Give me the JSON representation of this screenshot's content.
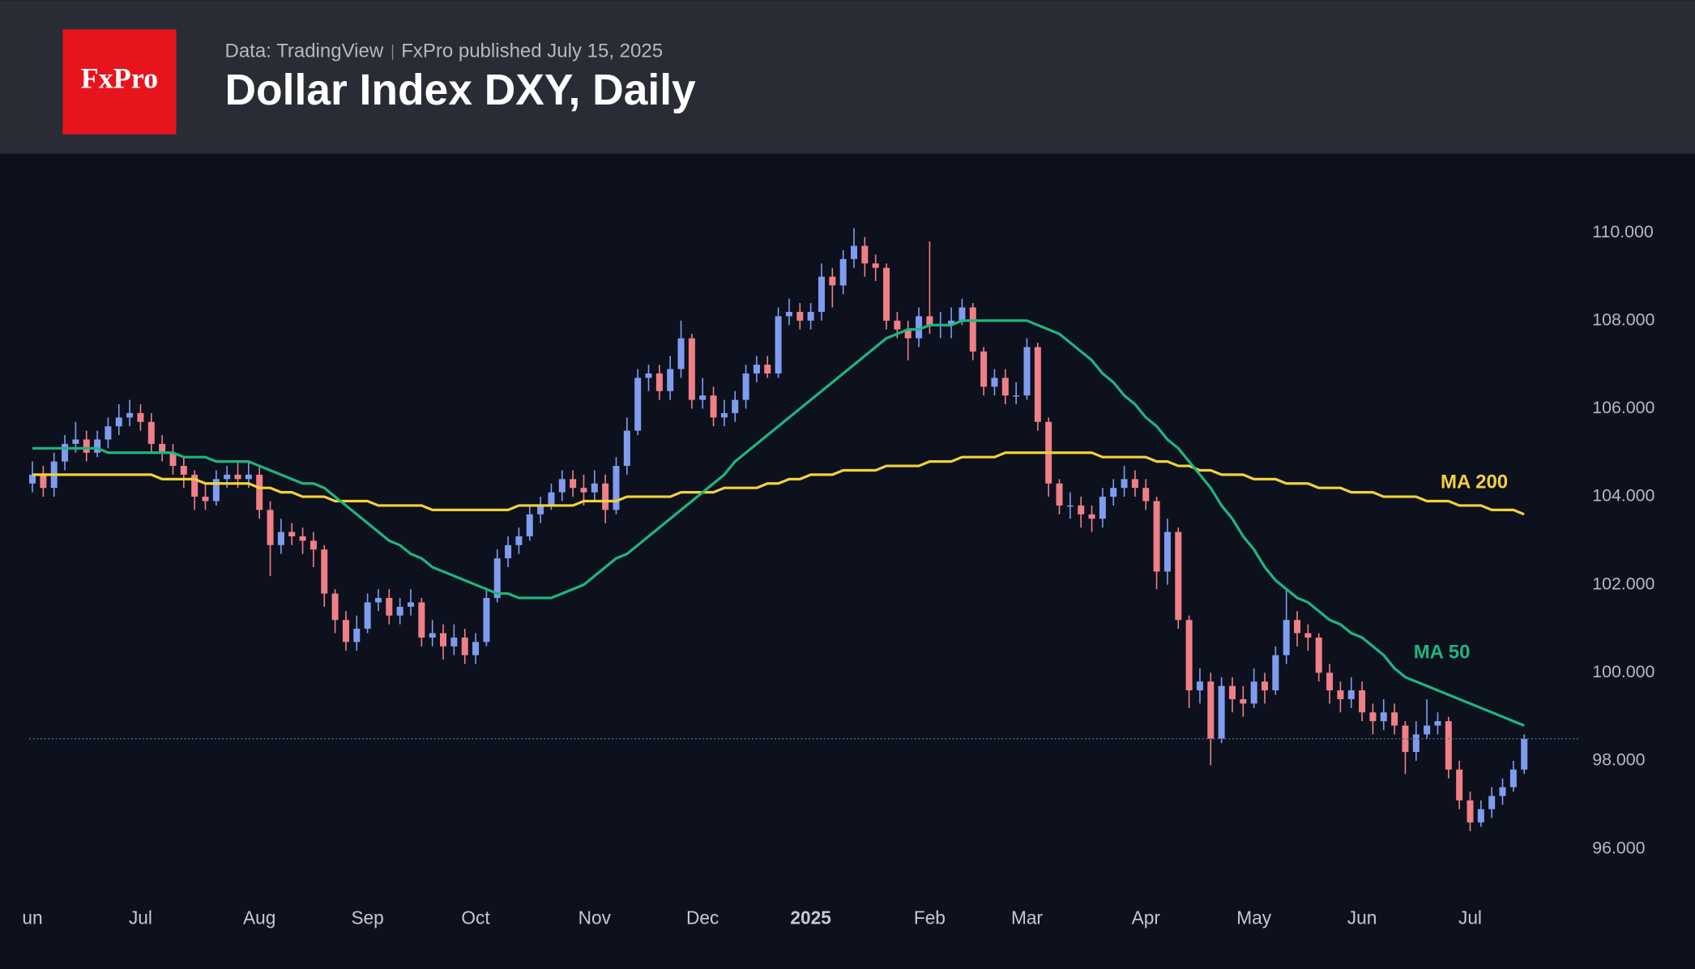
{
  "header": {
    "logo": "FxPro",
    "source": "Data: TradingView",
    "published": "FxPro published July 15, 2025"
  },
  "chart_data": {
    "type": "candlestick",
    "title": "Dollar Index DXY, Daily",
    "up_color": "#7f9cf0",
    "down_color": "#f07f86",
    "ylim": [
      95.2,
      111.4
    ],
    "yticks": [
      {
        "value": 96,
        "label": "96.000"
      },
      {
        "value": 98,
        "label": "98.000"
      },
      {
        "value": 100,
        "label": "100.000"
      },
      {
        "value": 102,
        "label": "102.000"
      },
      {
        "value": 104,
        "label": "104.000"
      },
      {
        "value": 106,
        "label": "106.000"
      },
      {
        "value": 108,
        "label": "108.000"
      },
      {
        "value": 110,
        "label": "110.000"
      }
    ],
    "categories": [
      "un",
      null,
      null,
      null,
      null,
      null,
      null,
      null,
      null,
      null,
      "Jul",
      null,
      null,
      null,
      null,
      null,
      null,
      null,
      null,
      null,
      null,
      "Aug",
      null,
      null,
      null,
      null,
      null,
      null,
      null,
      null,
      null,
      "Sep",
      null,
      null,
      null,
      null,
      null,
      null,
      null,
      null,
      null,
      "Oct",
      null,
      null,
      null,
      null,
      null,
      null,
      null,
      null,
      null,
      null,
      "Nov",
      null,
      null,
      null,
      null,
      null,
      null,
      null,
      null,
      null,
      "Dec",
      null,
      null,
      null,
      null,
      null,
      null,
      null,
      null,
      null,
      "2025",
      null,
      null,
      null,
      null,
      null,
      null,
      null,
      null,
      null,
      null,
      "Feb",
      null,
      null,
      null,
      null,
      null,
      null,
      null,
      null,
      "Mar",
      null,
      null,
      null,
      null,
      null,
      null,
      null,
      null,
      null,
      null,
      "Apr",
      null,
      null,
      null,
      null,
      null,
      null,
      null,
      null,
      null,
      "May",
      null,
      null,
      null,
      null,
      null,
      null,
      null,
      null,
      null,
      "Jun",
      null,
      null,
      null,
      null,
      null,
      null,
      null,
      null,
      null,
      "Jul",
      null,
      null,
      null,
      null,
      null
    ],
    "open": [
      104.3,
      104.5,
      104.2,
      104.8,
      105.2,
      105.3,
      105.0,
      105.3,
      105.6,
      105.8,
      105.9,
      105.7,
      105.2,
      105.0,
      104.7,
      104.5,
      104.0,
      103.9,
      104.4,
      104.5,
      104.4,
      104.5,
      103.7,
      102.9,
      103.2,
      103.1,
      103.0,
      102.8,
      101.8,
      101.2,
      100.7,
      101.0,
      101.6,
      101.7,
      101.3,
      101.5,
      101.6,
      100.8,
      100.9,
      100.6,
      100.8,
      100.4,
      100.7,
      101.7,
      102.6,
      102.9,
      103.1,
      103.6,
      103.8,
      104.1,
      104.4,
      104.2,
      104.1,
      104.3,
      103.7,
      104.7,
      105.5,
      106.7,
      106.8,
      106.4,
      106.9,
      107.6,
      106.2,
      106.3,
      105.8,
      105.9,
      106.2,
      106.8,
      107.0,
      106.8,
      108.1,
      108.2,
      108.0,
      108.2,
      109.0,
      108.8,
      109.4,
      109.7,
      109.3,
      109.2,
      108.0,
      107.8,
      107.6,
      108.1,
      107.9,
      107.9,
      108.0,
      108.3,
      107.3,
      106.5,
      106.7,
      106.3,
      106.3,
      107.4,
      105.7,
      104.3,
      103.8,
      103.8,
      103.6,
      103.5,
      104.0,
      104.2,
      104.4,
      104.2,
      103.9,
      102.3,
      103.2,
      101.2,
      99.6,
      99.8,
      98.5,
      99.7,
      99.4,
      99.3,
      99.8,
      99.6,
      100.4,
      101.2,
      100.9,
      100.8,
      100.0,
      99.6,
      99.4,
      99.6,
      99.1,
      98.9,
      99.1,
      98.8,
      98.2,
      98.6,
      98.8,
      98.9,
      97.8,
      97.1,
      96.6,
      96.9,
      97.2,
      97.4,
      97.8
    ],
    "high": [
      104.8,
      104.7,
      105.0,
      105.4,
      105.7,
      105.5,
      105.5,
      105.8,
      106.1,
      106.2,
      106.1,
      105.9,
      105.4,
      105.2,
      104.9,
      104.6,
      104.3,
      104.6,
      104.7,
      104.8,
      104.8,
      104.7,
      103.9,
      103.5,
      103.4,
      103.3,
      103.2,
      102.9,
      101.9,
      101.4,
      101.3,
      101.8,
      101.9,
      101.9,
      101.7,
      101.9,
      101.7,
      101.2,
      101.1,
      101.1,
      101.0,
      100.9,
      101.9,
      102.8,
      103.1,
      103.3,
      103.8,
      104.0,
      104.3,
      104.6,
      104.6,
      104.5,
      104.6,
      104.5,
      104.9,
      105.8,
      106.9,
      107.0,
      107.0,
      107.2,
      108.0,
      107.7,
      106.7,
      106.5,
      106.2,
      106.4,
      107.0,
      107.2,
      107.2,
      108.3,
      108.5,
      108.4,
      108.4,
      109.3,
      109.2,
      109.6,
      110.1,
      109.9,
      109.5,
      109.3,
      108.2,
      108.0,
      108.3,
      109.8,
      108.2,
      108.3,
      108.5,
      108.4,
      107.4,
      106.9,
      106.9,
      106.6,
      107.6,
      107.5,
      105.8,
      104.4,
      104.1,
      104.0,
      103.8,
      104.2,
      104.4,
      104.7,
      104.6,
      104.4,
      104.0,
      103.5,
      103.3,
      101.3,
      100.1,
      100.0,
      99.9,
      99.9,
      99.7,
      100.1,
      100.0,
      100.6,
      101.9,
      101.4,
      101.1,
      100.9,
      100.2,
      99.8,
      99.9,
      99.8,
      99.3,
      99.4,
      99.3,
      98.9,
      98.9,
      99.4,
      99.1,
      99.0,
      98.0,
      97.3,
      97.1,
      97.4,
      97.6,
      98.0,
      98.6
    ],
    "low": [
      104.1,
      104.0,
      104.0,
      104.6,
      105.0,
      104.8,
      104.9,
      105.1,
      105.4,
      105.6,
      105.5,
      105.0,
      104.8,
      104.5,
      104.2,
      103.7,
      103.7,
      103.8,
      104.2,
      104.2,
      104.2,
      103.5,
      102.2,
      102.7,
      102.9,
      102.7,
      102.4,
      101.5,
      100.9,
      100.5,
      100.5,
      100.9,
      101.4,
      101.1,
      101.1,
      101.3,
      100.6,
      100.6,
      100.3,
      100.4,
      100.2,
      100.2,
      100.6,
      101.6,
      102.4,
      102.7,
      103.0,
      103.4,
      103.7,
      103.9,
      104.0,
      103.8,
      103.9,
      103.4,
      103.6,
      104.5,
      105.4,
      106.4,
      106.2,
      106.2,
      106.7,
      106.0,
      106.0,
      105.6,
      105.6,
      105.7,
      106.0,
      106.6,
      106.7,
      106.7,
      107.9,
      107.8,
      107.8,
      108.0,
      108.3,
      108.6,
      109.2,
      109.0,
      108.9,
      107.8,
      107.6,
      107.1,
      107.4,
      107.7,
      107.6,
      107.6,
      107.9,
      107.1,
      106.3,
      106.3,
      106.1,
      106.1,
      106.2,
      105.5,
      104.0,
      103.6,
      103.5,
      103.3,
      103.2,
      103.3,
      103.8,
      104.0,
      104.0,
      103.7,
      101.9,
      102.0,
      101.0,
      99.2,
      99.3,
      97.9,
      98.4,
      99.1,
      99.0,
      99.2,
      99.3,
      99.5,
      100.2,
      100.6,
      100.5,
      99.8,
      99.3,
      99.1,
      99.2,
      98.9,
      98.6,
      98.7,
      98.6,
      97.7,
      98.0,
      98.5,
      98.6,
      97.6,
      96.9,
      96.4,
      96.5,
      96.7,
      97.0,
      97.3,
      97.7
    ],
    "close": [
      104.5,
      104.2,
      104.8,
      105.2,
      105.3,
      105.0,
      105.3,
      105.6,
      105.8,
      105.9,
      105.7,
      105.2,
      105.0,
      104.7,
      104.5,
      104.0,
      103.9,
      104.4,
      104.5,
      104.4,
      104.5,
      103.7,
      102.9,
      103.2,
      103.1,
      103.0,
      102.8,
      101.8,
      101.2,
      100.7,
      101.0,
      101.6,
      101.7,
      101.3,
      101.5,
      101.6,
      100.8,
      100.9,
      100.6,
      100.8,
      100.4,
      100.7,
      101.7,
      102.6,
      102.9,
      103.1,
      103.6,
      103.8,
      104.1,
      104.4,
      104.2,
      104.1,
      104.3,
      103.7,
      104.7,
      105.5,
      106.7,
      106.8,
      106.4,
      106.9,
      107.6,
      106.2,
      106.3,
      105.8,
      105.9,
      106.2,
      106.8,
      107.0,
      106.8,
      108.1,
      108.2,
      108.0,
      108.2,
      109.0,
      108.8,
      109.4,
      109.7,
      109.3,
      109.2,
      108.0,
      107.8,
      107.6,
      108.1,
      107.9,
      107.9,
      108.0,
      108.3,
      107.3,
      106.5,
      106.7,
      106.3,
      106.3,
      107.4,
      105.7,
      104.3,
      103.8,
      103.8,
      103.6,
      103.5,
      104.0,
      104.2,
      104.4,
      104.2,
      103.9,
      102.3,
      103.2,
      101.2,
      99.6,
      99.8,
      98.5,
      99.7,
      99.4,
      99.3,
      99.8,
      99.6,
      100.4,
      101.2,
      100.9,
      100.8,
      100.0,
      99.6,
      99.4,
      99.6,
      99.1,
      98.9,
      99.1,
      98.8,
      98.2,
      98.6,
      98.8,
      98.9,
      97.8,
      97.1,
      96.6,
      96.9,
      97.2,
      97.4,
      97.8,
      98.5
    ],
    "series": [
      {
        "name": "MA 200",
        "color": "#f2d13c",
        "values": [
          104.5,
          104.5,
          104.5,
          104.5,
          104.5,
          104.5,
          104.5,
          104.5,
          104.5,
          104.5,
          104.5,
          104.5,
          104.4,
          104.4,
          104.4,
          104.4,
          104.3,
          104.3,
          104.3,
          104.3,
          104.3,
          104.2,
          104.2,
          104.1,
          104.1,
          104.0,
          104.0,
          104.0,
          103.9,
          103.9,
          103.9,
          103.9,
          103.8,
          103.8,
          103.8,
          103.8,
          103.8,
          103.7,
          103.7,
          103.7,
          103.7,
          103.7,
          103.7,
          103.7,
          103.7,
          103.8,
          103.8,
          103.8,
          103.8,
          103.8,
          103.8,
          103.9,
          103.9,
          103.9,
          103.9,
          104.0,
          104.0,
          104.0,
          104.0,
          104.0,
          104.1,
          104.1,
          104.1,
          104.1,
          104.2,
          104.2,
          104.2,
          104.2,
          104.3,
          104.3,
          104.4,
          104.4,
          104.5,
          104.5,
          104.5,
          104.6,
          104.6,
          104.6,
          104.6,
          104.7,
          104.7,
          104.7,
          104.7,
          104.8,
          104.8,
          104.8,
          104.9,
          104.9,
          104.9,
          104.9,
          105.0,
          105.0,
          105.0,
          105.0,
          105.0,
          105.0,
          105.0,
          105.0,
          105.0,
          104.9,
          104.9,
          104.9,
          104.9,
          104.9,
          104.8,
          104.8,
          104.7,
          104.7,
          104.6,
          104.6,
          104.5,
          104.5,
          104.5,
          104.4,
          104.4,
          104.4,
          104.3,
          104.3,
          104.3,
          104.2,
          104.2,
          104.2,
          104.1,
          104.1,
          104.1,
          104.0,
          104.0,
          104.0,
          104.0,
          103.9,
          103.9,
          103.9,
          103.8,
          103.8,
          103.8,
          103.7,
          103.7,
          103.7,
          103.6
        ]
      },
      {
        "name": "MA 50",
        "color": "#1fb57d",
        "values": [
          105.1,
          105.1,
          105.1,
          105.1,
          105.1,
          105.1,
          105.1,
          105.0,
          105.0,
          105.0,
          105.0,
          105.0,
          105.0,
          105.0,
          104.9,
          104.9,
          104.9,
          104.8,
          104.8,
          104.8,
          104.8,
          104.7,
          104.6,
          104.5,
          104.4,
          104.3,
          104.3,
          104.2,
          104.0,
          103.8,
          103.6,
          103.4,
          103.2,
          103.0,
          102.9,
          102.7,
          102.6,
          102.4,
          102.3,
          102.2,
          102.1,
          102.0,
          101.9,
          101.8,
          101.8,
          101.7,
          101.7,
          101.7,
          101.7,
          101.8,
          101.9,
          102.0,
          102.2,
          102.4,
          102.6,
          102.7,
          102.9,
          103.1,
          103.3,
          103.5,
          103.7,
          103.9,
          104.1,
          104.3,
          104.5,
          104.8,
          105.0,
          105.2,
          105.4,
          105.6,
          105.8,
          106.0,
          106.2,
          106.4,
          106.6,
          106.8,
          107.0,
          107.2,
          107.4,
          107.6,
          107.7,
          107.8,
          107.8,
          107.9,
          107.9,
          107.9,
          108.0,
          108.0,
          108.0,
          108.0,
          108.0,
          108.0,
          108.0,
          107.9,
          107.8,
          107.7,
          107.5,
          107.3,
          107.1,
          106.8,
          106.6,
          106.3,
          106.1,
          105.8,
          105.6,
          105.3,
          105.1,
          104.8,
          104.5,
          104.2,
          103.8,
          103.5,
          103.1,
          102.8,
          102.4,
          102.1,
          101.9,
          101.7,
          101.6,
          101.4,
          101.2,
          101.1,
          100.9,
          100.8,
          100.6,
          100.4,
          100.1,
          99.9,
          99.8,
          99.7,
          99.6,
          99.5,
          99.4,
          99.3,
          99.2,
          99.1,
          99.0,
          98.9,
          98.8
        ]
      }
    ]
  }
}
